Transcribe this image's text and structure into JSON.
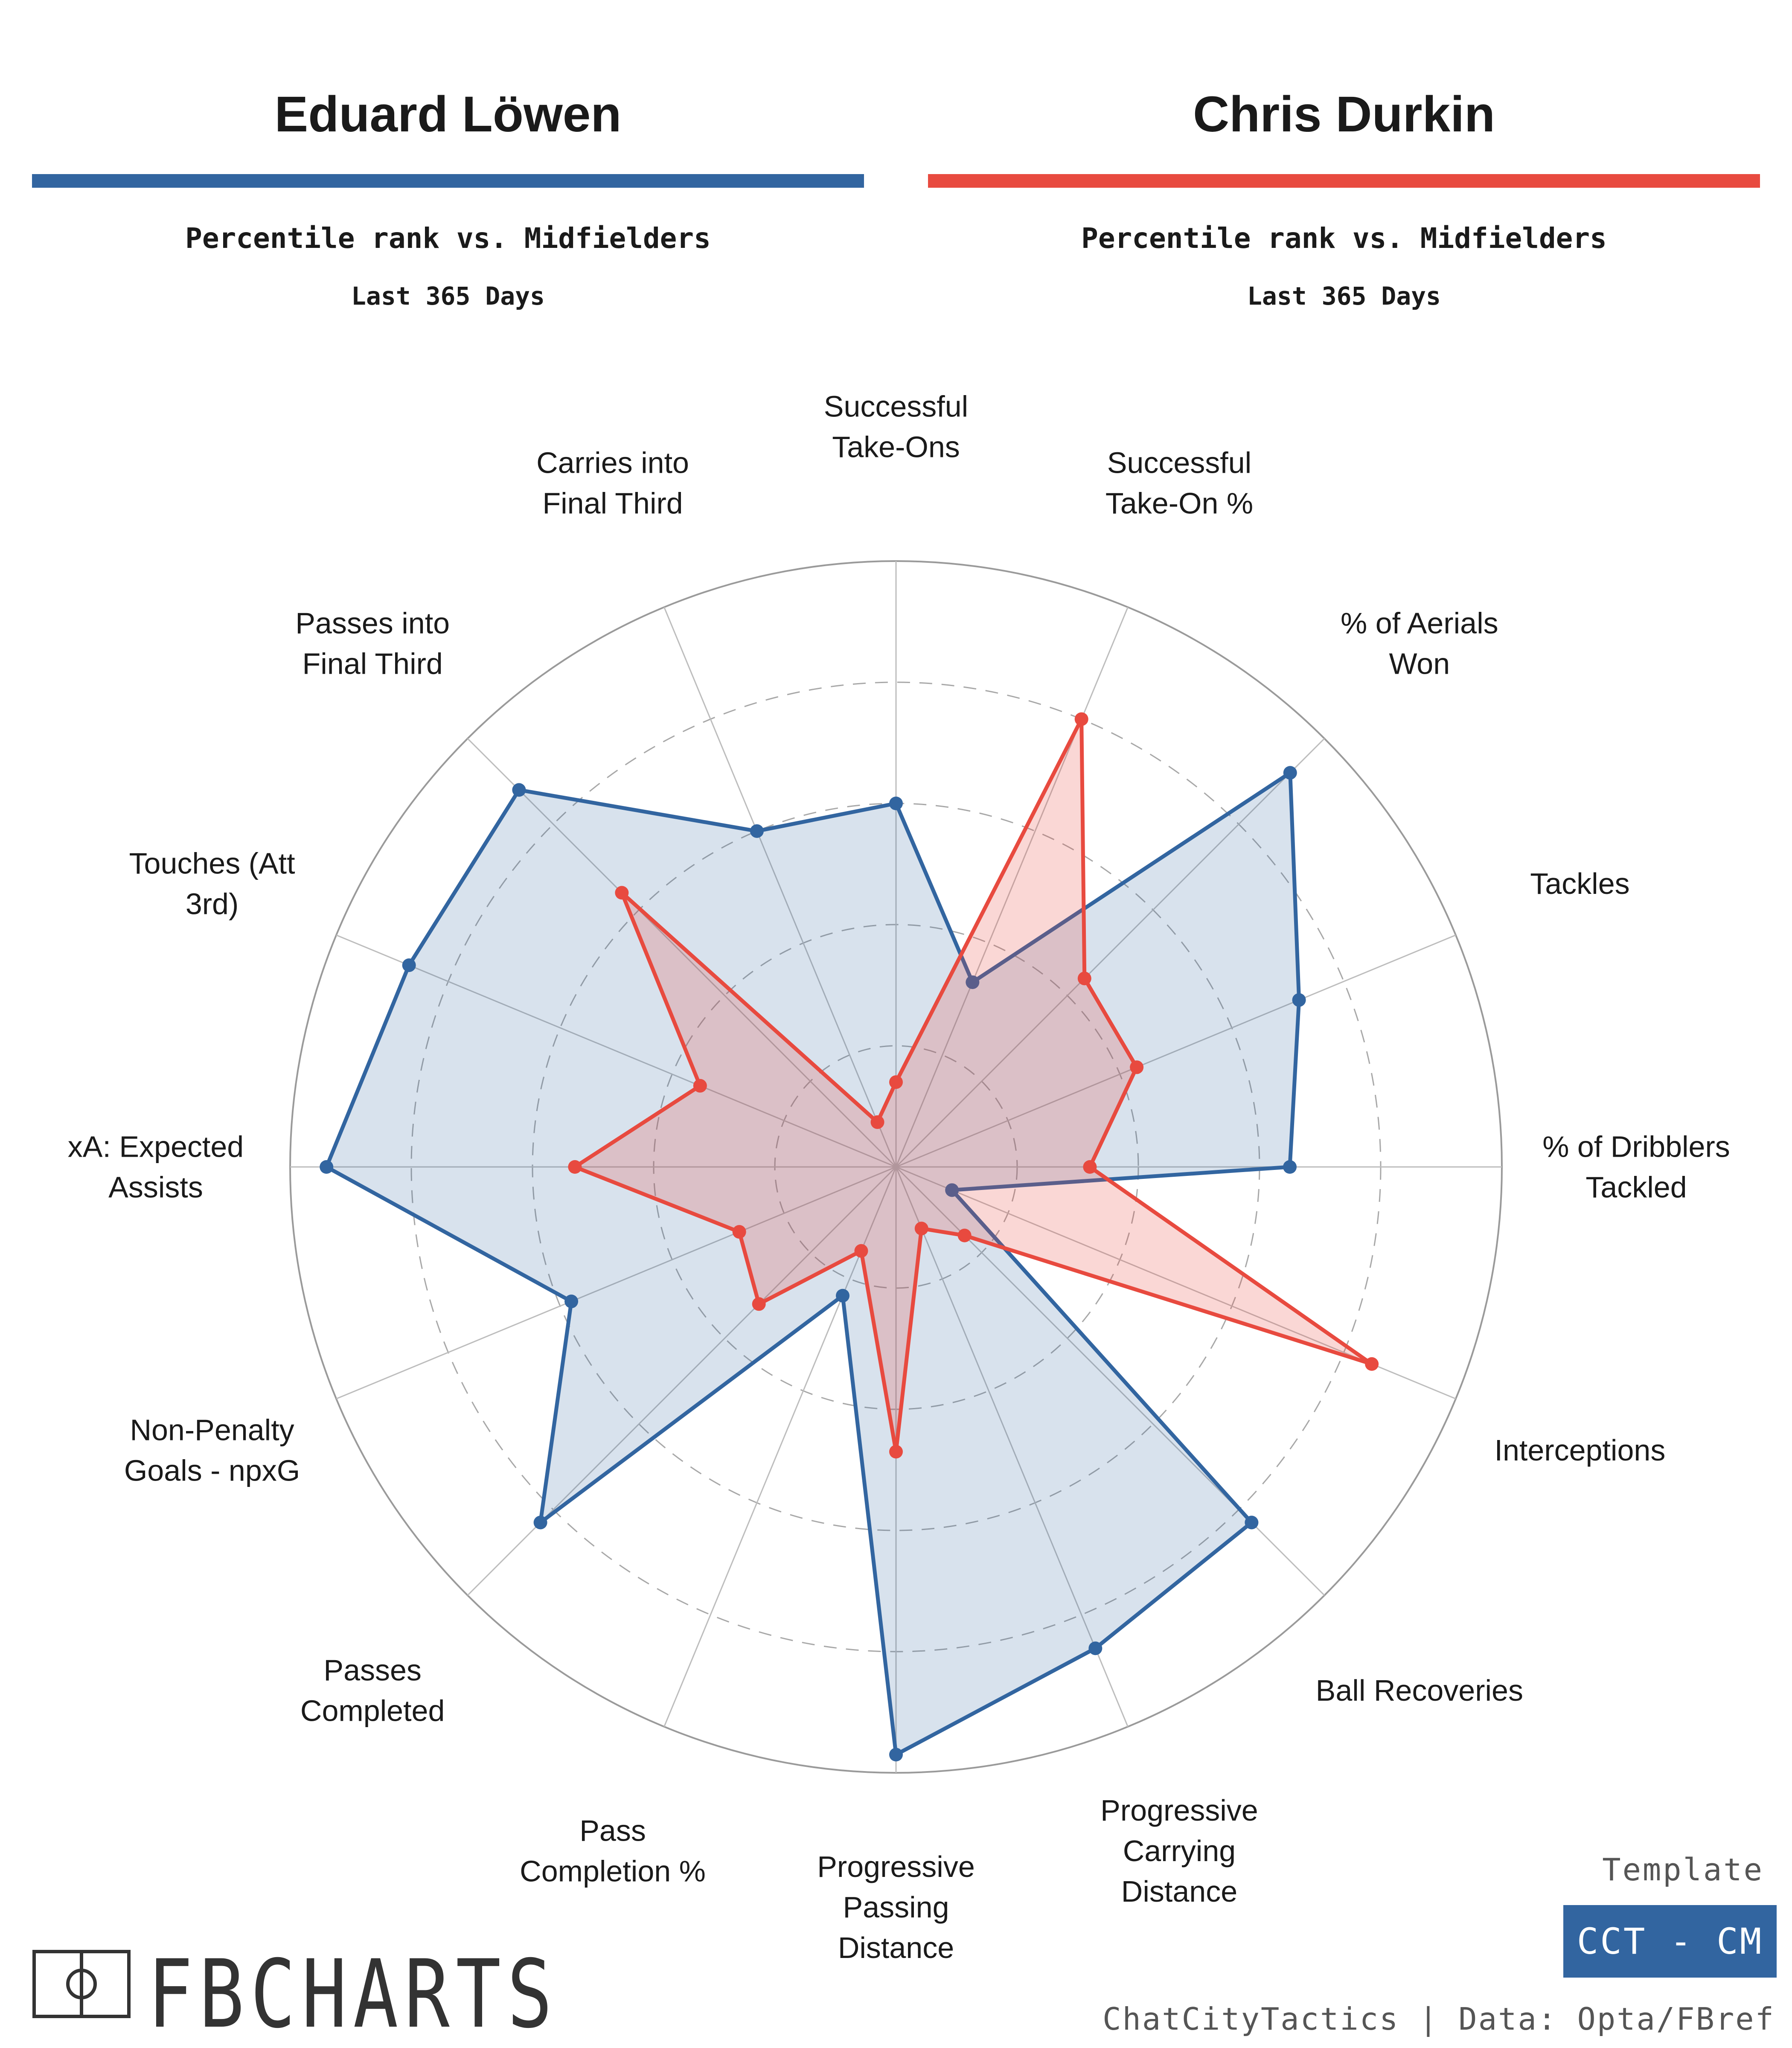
{
  "players": [
    {
      "name": "Eduard Löwen",
      "color": "#3265a0",
      "subtitle": "Percentile rank vs. Midfielders",
      "period": "Last 365 Days"
    },
    {
      "name": "Chris Durkin",
      "color": "#e84a3f",
      "subtitle": "Percentile rank vs. Midfielders",
      "period": "Last 365 Days"
    }
  ],
  "chart_data": {
    "type": "radar",
    "title": "Percentile rank vs. Midfielders",
    "scale": [
      0,
      100
    ],
    "rings": [
      20,
      40,
      60,
      80,
      100
    ],
    "categories": [
      "Successful Take-Ons",
      "Successful Take-On %",
      "% of Aerials Won",
      "Tackles",
      "% of Dribblers Tackled",
      "Interceptions",
      "Ball Recoveries",
      "Progressive Carrying Distance",
      "Progressive Passing Distance",
      "Pass Completion %",
      "Passes Completed",
      "Non-Penalty Goals - npxG",
      "xA: Expected Assists",
      "Touches (Att 3rd)",
      "Passes into Final Third",
      "Carries into Final Third"
    ],
    "category_lines": [
      [
        "Successful",
        "Take-Ons"
      ],
      [
        "Successful",
        "Take-On %"
      ],
      [
        "% of Aerials",
        "Won"
      ],
      [
        "Tackles"
      ],
      [
        "% of Dribblers",
        "Tackled"
      ],
      [
        "Interceptions"
      ],
      [
        "Ball Recoveries"
      ],
      [
        "Progressive",
        "Carrying",
        "Distance"
      ],
      [
        "Progressive",
        "Passing",
        "Distance"
      ],
      [
        "Pass",
        "Completion %"
      ],
      [
        "Passes",
        "Completed"
      ],
      [
        "Non-Penalty",
        "Goals - npxG"
      ],
      [
        "xA: Expected",
        "Assists"
      ],
      [
        "Touches (Att",
        "3rd)"
      ],
      [
        "Passes into",
        "Final Third"
      ],
      [
        "Carries into",
        "Final Third"
      ]
    ],
    "series": [
      {
        "name": "Eduard Löwen",
        "color": "#3265a0",
        "values": [
          60,
          33,
          92,
          72,
          65,
          10,
          83,
          86,
          97,
          23,
          83,
          58,
          94,
          87,
          88,
          60
        ]
      },
      {
        "name": "Chris Durkin",
        "color": "#e84a3f",
        "values": [
          14,
          80,
          44,
          43,
          32,
          85,
          16,
          11,
          47,
          15,
          32,
          28,
          53,
          35,
          64,
          8
        ]
      }
    ]
  },
  "footer": {
    "template_label": "Template",
    "template_value": "CCT - CM",
    "credit": "ChatCityTactics | Data: Opta/FBref",
    "brand": "FBCHARTS",
    "badge_color": "#3265a0"
  }
}
